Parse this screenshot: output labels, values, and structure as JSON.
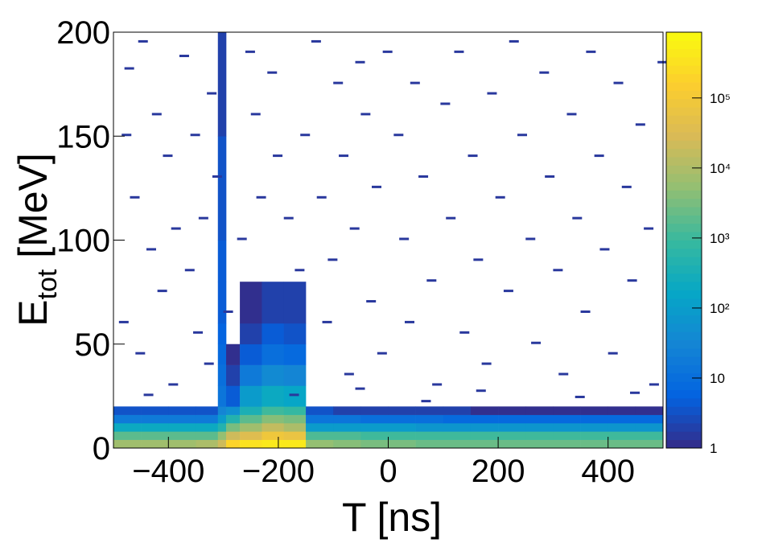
{
  "chart_data": {
    "type": "heatmap",
    "xlabel": "T [ns]",
    "ylabel": {
      "base": "E",
      "sub": "tot",
      "rest": " [MeV]"
    },
    "xlim": [
      -500,
      500
    ],
    "ylim": [
      0,
      200
    ],
    "xticks": [
      {
        "value": -400,
        "label": "−400"
      },
      {
        "value": -200,
        "label": "−200"
      },
      0,
      200,
      400
    ],
    "yticks": [
      0,
      50,
      100,
      150,
      200
    ],
    "zlim": [
      1,
      870000
    ],
    "zscale": "log",
    "zticks": [
      1,
      10,
      {
        "value": 100,
        "label": "10²"
      },
      {
        "value": 1000,
        "label": "10³"
      },
      {
        "value": 10000,
        "label": "10⁴"
      },
      {
        "value": 100000,
        "label": "10⁵"
      }
    ],
    "colorscale": [
      "#352a87",
      "#0363e1",
      "#1485d4",
      "#06a7c6",
      "#38b99e",
      "#92bf73",
      "#d9ba56",
      "#fcce2e",
      "#f9fb0e"
    ],
    "x_edges": [
      -500,
      -450,
      -400,
      -350,
      -310,
      -295,
      -270,
      -230,
      -190,
      -150,
      -100,
      -50,
      0,
      50,
      100,
      150,
      200,
      250,
      300,
      350,
      400,
      450,
      500
    ],
    "y_edges": [
      0,
      4,
      8,
      12,
      16,
      20,
      30,
      40,
      50,
      60,
      80,
      100,
      150,
      200
    ],
    "z": [
      [
        8000,
        8000,
        8000,
        9000,
        20000,
        200000,
        300000,
        500000,
        400000,
        5000,
        4000,
        3000,
        3000,
        2500,
        2500,
        2500,
        2500,
        2500,
        2500,
        2500,
        2500,
        2500
      ],
      [
        2000,
        2000,
        2000,
        2000,
        5000,
        20000,
        40000,
        80000,
        60000,
        1500,
        1500,
        1200,
        1200,
        1000,
        1000,
        1000,
        1000,
        1000,
        1000,
        1000,
        1000,
        1000
      ],
      [
        200,
        200,
        200,
        200,
        500,
        3000,
        8000,
        15000,
        10000,
        100,
        100,
        80,
        80,
        70,
        70,
        70,
        70,
        70,
        70,
        70,
        70,
        70
      ],
      [
        20,
        20,
        20,
        20,
        80,
        500,
        2000,
        4000,
        3000,
        15,
        12,
        10,
        10,
        10,
        8,
        8,
        8,
        8,
        8,
        8,
        8,
        8
      ],
      [
        3,
        3,
        3,
        3,
        30,
        50,
        400,
        1000,
        800,
        3,
        2,
        2,
        2,
        2,
        2,
        1,
        1,
        1,
        1,
        1,
        1,
        1
      ],
      [
        0,
        0,
        0,
        0,
        15,
        5,
        80,
        200,
        150,
        0,
        0,
        0,
        0,
        0,
        0,
        0,
        0,
        0,
        0,
        0,
        0,
        0
      ],
      [
        0,
        0,
        0,
        0,
        10,
        2,
        20,
        40,
        30,
        0,
        0,
        0,
        0,
        0,
        0,
        0,
        0,
        0,
        0,
        0,
        0,
        0
      ],
      [
        0,
        0,
        0,
        0,
        8,
        1,
        5,
        10,
        8,
        0,
        0,
        0,
        0,
        0,
        0,
        0,
        0,
        0,
        0,
        0,
        0,
        0
      ],
      [
        0,
        0,
        0,
        0,
        6,
        0,
        2,
        4,
        3,
        0,
        0,
        0,
        0,
        0,
        0,
        0,
        0,
        0,
        0,
        0,
        0,
        0
      ],
      [
        0,
        0,
        0,
        0,
        5,
        0,
        1,
        2,
        2,
        0,
        0,
        0,
        0,
        0,
        0,
        0,
        0,
        0,
        0,
        0,
        0,
        0
      ],
      [
        0,
        0,
        0,
        0,
        4,
        0,
        0,
        0,
        0,
        0,
        0,
        0,
        0,
        0,
        0,
        0,
        0,
        0,
        0,
        0,
        0,
        0
      ],
      [
        0,
        0,
        0,
        0,
        3,
        0,
        0,
        0,
        0,
        0,
        0,
        0,
        0,
        0,
        0,
        0,
        0,
        0,
        0,
        0,
        0,
        0
      ],
      [
        0,
        0,
        0,
        0,
        2,
        0,
        0,
        0,
        0,
        0,
        0,
        0,
        0,
        0,
        0,
        0,
        0,
        0,
        0,
        0,
        0,
        0
      ]
    ],
    "hits": [
      [
        -480,
        182
      ],
      [
        -455,
        195
      ],
      [
        -430,
        160
      ],
      [
        -410,
        140
      ],
      [
        -470,
        120
      ],
      [
        -440,
        95
      ],
      [
        -420,
        75
      ],
      [
        -490,
        60
      ],
      [
        -460,
        45
      ],
      [
        -400,
        30
      ],
      [
        -380,
        188
      ],
      [
        -360,
        150
      ],
      [
        -345,
        110
      ],
      [
        -370,
        85
      ],
      [
        -355,
        55
      ],
      [
        -330,
        170
      ],
      [
        -320,
        130
      ],
      [
        -335,
        40
      ],
      [
        -260,
        190
      ],
      [
        -250,
        160
      ],
      [
        -240,
        120
      ],
      [
        -275,
        100
      ],
      [
        -220,
        180
      ],
      [
        -210,
        140
      ],
      [
        -190,
        110
      ],
      [
        -170,
        85
      ],
      [
        -160,
        150
      ],
      [
        -140,
        195
      ],
      [
        -130,
        120
      ],
      [
        -110,
        90
      ],
      [
        -120,
        60
      ],
      [
        -100,
        175
      ],
      [
        -90,
        140
      ],
      [
        -80,
        35
      ],
      [
        -70,
        105
      ],
      [
        -60,
        185
      ],
      [
        -50,
        160
      ],
      [
        -40,
        70
      ],
      [
        -30,
        125
      ],
      [
        -20,
        45
      ],
      [
        -10,
        190
      ],
      [
        10,
        150
      ],
      [
        20,
        100
      ],
      [
        30,
        60
      ],
      [
        40,
        175
      ],
      [
        55,
        130
      ],
      [
        70,
        80
      ],
      [
        80,
        30
      ],
      [
        95,
        165
      ],
      [
        105,
        110
      ],
      [
        120,
        190
      ],
      [
        130,
        55
      ],
      [
        145,
        140
      ],
      [
        155,
        90
      ],
      [
        170,
        40
      ],
      [
        180,
        170
      ],
      [
        195,
        120
      ],
      [
        210,
        75
      ],
      [
        220,
        195
      ],
      [
        235,
        150
      ],
      [
        250,
        100
      ],
      [
        260,
        50
      ],
      [
        275,
        180
      ],
      [
        285,
        130
      ],
      [
        300,
        85
      ],
      [
        310,
        35
      ],
      [
        325,
        160
      ],
      [
        335,
        110
      ],
      [
        350,
        65
      ],
      [
        360,
        190
      ],
      [
        375,
        140
      ],
      [
        385,
        95
      ],
      [
        400,
        45
      ],
      [
        410,
        175
      ],
      [
        425,
        125
      ],
      [
        435,
        80
      ],
      [
        450,
        155
      ],
      [
        465,
        105
      ],
      [
        475,
        30
      ],
      [
        490,
        185
      ],
      [
        -485,
        150
      ],
      [
        -395,
        105
      ],
      [
        -300,
        65
      ],
      [
        -180,
        25
      ],
      [
        -60,
        28
      ],
      [
        60,
        22
      ],
      [
        160,
        27
      ],
      [
        340,
        24
      ],
      [
        440,
        26
      ],
      [
        -445,
        25
      ]
    ]
  }
}
